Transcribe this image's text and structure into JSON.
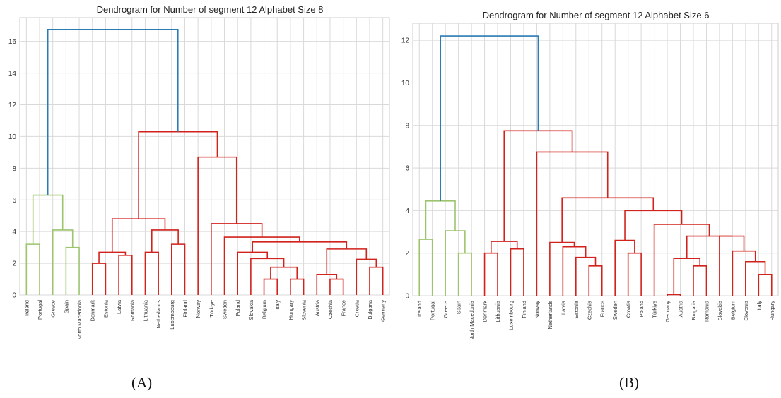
{
  "captions": {
    "a": "(A)",
    "b": "(B)"
  },
  "colors": {
    "above": "#2b7bb5",
    "cluster1": "#9dc46d",
    "cluster2": "#d1221c",
    "grid": "#d9d9d9",
    "axis_text": "#333333",
    "bg": "#ffffff"
  },
  "chart_data": [
    {
      "type": "dendrogram",
      "title": "Dendrogram for Number of segment 12 Alphabet Size 8",
      "xlabel": "",
      "ylabel": "",
      "ylim": [
        0,
        17.5
      ],
      "yticks": [
        0,
        2,
        4,
        6,
        8,
        10,
        12,
        14,
        16
      ],
      "grid": true,
      "leaves": [
        "Ireland",
        "Portugal",
        "Greece",
        "Spain",
        "North Macedonia",
        "Denmark",
        "Estonia",
        "Latvia",
        "Romania",
        "Lithuania",
        "Netherlands",
        "Luxembourg",
        "Finland",
        "Norway",
        "Türkiye",
        "Sweden",
        "Poland",
        "Slovakia",
        "Belgium",
        "Italy",
        "Hungary",
        "Slovenia",
        "Austria",
        "Czechia",
        "France",
        "Croatia",
        "Bulgaria",
        "Germany"
      ],
      "merges": [
        {
          "a": "Ireland",
          "b": "Portugal",
          "height": 3.2,
          "color": "cluster1"
        },
        {
          "a": "Spain",
          "b": "North Macedonia",
          "height": 3.0,
          "color": "cluster1"
        },
        {
          "a": "Greece",
          "b": "Spain+",
          "height": 4.1,
          "color": "cluster1"
        },
        {
          "a": "Ireland+",
          "b": "Greece+",
          "height": 6.3,
          "color": "cluster1"
        },
        {
          "a": "Denmark",
          "b": "Estonia",
          "height": 2.0,
          "color": "cluster2"
        },
        {
          "a": "Latvia",
          "b": "Romania",
          "height": 2.5,
          "color": "cluster2"
        },
        {
          "a": "Denmark+",
          "b": "Latvia+",
          "height": 2.7,
          "color": "cluster2"
        },
        {
          "a": "Lithuania",
          "b": "Netherlands",
          "height": 2.7,
          "color": "cluster2"
        },
        {
          "a": "Luxembourg",
          "b": "Finland",
          "height": 3.2,
          "color": "cluster2"
        },
        {
          "a": "Lithuania+",
          "b": "Luxembourg+",
          "height": 4.1,
          "color": "cluster2"
        },
        {
          "a": "Denmark+",
          "b": "Lithuania+",
          "height": 4.8,
          "color": "cluster2"
        },
        {
          "a": "Belgium",
          "b": "Italy",
          "height": 1.0,
          "color": "cluster2"
        },
        {
          "a": "Hungary",
          "b": "Slovenia",
          "height": 1.0,
          "color": "cluster2"
        },
        {
          "a": "Belgium+",
          "b": "Hungary+",
          "height": 1.75,
          "color": "cluster2"
        },
        {
          "a": "Slovakia",
          "b": "Belgium+",
          "height": 2.3,
          "color": "cluster2"
        },
        {
          "a": "Poland",
          "b": "Slovakia+",
          "height": 2.7,
          "color": "cluster2"
        },
        {
          "a": "Czechia",
          "b": "France",
          "height": 1.0,
          "color": "cluster2"
        },
        {
          "a": "Austria",
          "b": "Czechia+",
          "height": 1.3,
          "color": "cluster2"
        },
        {
          "a": "Bulgaria",
          "b": "Germany",
          "height": 1.75,
          "color": "cluster2"
        },
        {
          "a": "Croatia",
          "b": "Bulgaria+",
          "height": 2.25,
          "color": "cluster2"
        },
        {
          "a": "Austria+",
          "b": "Croatia+",
          "height": 2.9,
          "color": "cluster2"
        },
        {
          "a": "Poland+",
          "b": "Austria+",
          "height": 3.35,
          "color": "cluster2"
        },
        {
          "a": "Sweden",
          "b": "Poland+",
          "height": 3.65,
          "color": "cluster2"
        },
        {
          "a": "Türkiye",
          "b": "Sweden+",
          "height": 4.5,
          "color": "cluster2"
        },
        {
          "a": "Norway",
          "b": "Türkiye+",
          "height": 8.7,
          "color": "cluster2"
        },
        {
          "a": "Denmark+",
          "b": "Norway+",
          "height": 10.3,
          "color": "cluster2"
        },
        {
          "a": "Ireland+",
          "b": "Denmark+",
          "height": 16.75,
          "color": "above"
        }
      ]
    },
    {
      "type": "dendrogram",
      "title": "Dendrogram for Number of segment 12 Alphabet Size 6",
      "xlabel": "",
      "ylabel": "",
      "ylim": [
        0,
        12.8
      ],
      "yticks": [
        0,
        2,
        4,
        6,
        8,
        10,
        12
      ],
      "grid": true,
      "leaves": [
        "Ireland",
        "Portugal",
        "Greece",
        "Spain",
        "North Macedonia",
        "Denmark",
        "Lithuania",
        "Luxembourg",
        "Finland",
        "Norway",
        "Netherlands",
        "Latvia",
        "Estonia",
        "Czechia",
        "France",
        "Sweden",
        "Croatia",
        "Poland",
        "Türkiye",
        "Germany",
        "Austria",
        "Bulgaria",
        "Romania",
        "Slovakia",
        "Belgium",
        "Slovenia",
        "Italy",
        "Hungary"
      ],
      "merges": [
        {
          "a": "Ireland",
          "b": "Portugal",
          "height": 2.65,
          "color": "cluster1"
        },
        {
          "a": "Spain",
          "b": "North Macedonia",
          "height": 2.0,
          "color": "cluster1"
        },
        {
          "a": "Greece",
          "b": "Spain+",
          "height": 3.05,
          "color": "cluster1"
        },
        {
          "a": "Ireland+",
          "b": "Greece+",
          "height": 4.45,
          "color": "cluster1"
        },
        {
          "a": "Denmark",
          "b": "Lithuania",
          "height": 2.0,
          "color": "cluster2"
        },
        {
          "a": "Luxembourg",
          "b": "Finland",
          "height": 2.2,
          "color": "cluster2"
        },
        {
          "a": "Denmark+",
          "b": "Luxembourg+",
          "height": 2.55,
          "color": "cluster2"
        },
        {
          "a": "Czechia",
          "b": "France",
          "height": 1.4,
          "color": "cluster2"
        },
        {
          "a": "Estonia",
          "b": "Czechia+",
          "height": 1.8,
          "color": "cluster2"
        },
        {
          "a": "Latvia",
          "b": "Estonia+",
          "height": 2.3,
          "color": "cluster2"
        },
        {
          "a": "Netherlands",
          "b": "Latvia+",
          "height": 2.5,
          "color": "cluster2"
        },
        {
          "a": "Croatia",
          "b": "Poland",
          "height": 2.0,
          "color": "cluster2"
        },
        {
          "a": "Sweden",
          "b": "Croatia+",
          "height": 2.6,
          "color": "cluster2"
        },
        {
          "a": "Germany",
          "b": "Austria",
          "height": 0.05,
          "color": "cluster2"
        },
        {
          "a": "Bulgaria",
          "b": "Romania",
          "height": 1.4,
          "color": "cluster2"
        },
        {
          "a": "Germany+",
          "b": "Bulgaria+",
          "height": 1.75,
          "color": "cluster2"
        },
        {
          "a": "Italy",
          "b": "Hungary",
          "height": 1.0,
          "color": "cluster2"
        },
        {
          "a": "Slovenia",
          "b": "Italy+",
          "height": 1.6,
          "color": "cluster2"
        },
        {
          "a": "Belgium",
          "b": "Slovenia+",
          "height": 2.1,
          "color": "cluster2"
        },
        {
          "a": "Slovakia",
          "b": "Belgium+",
          "height": 2.8,
          "color": "cluster2"
        },
        {
          "a": "Germany+",
          "b": "Slovakia+",
          "height": 2.8,
          "color": "cluster2"
        },
        {
          "a": "Türkiye",
          "b": "Germany+",
          "height": 3.35,
          "color": "cluster2"
        },
        {
          "a": "Sweden+",
          "b": "Türkiye+",
          "height": 4.0,
          "color": "cluster2"
        },
        {
          "a": "Netherlands+",
          "b": "Sweden+",
          "height": 4.6,
          "color": "cluster2"
        },
        {
          "a": "Norway",
          "b": "Netherlands+",
          "height": 6.75,
          "color": "cluster2"
        },
        {
          "a": "Denmark+",
          "b": "Norway+",
          "height": 7.75,
          "color": "cluster2"
        },
        {
          "a": "Ireland+",
          "b": "Denmark+",
          "height": 12.2,
          "color": "above"
        }
      ]
    }
  ]
}
